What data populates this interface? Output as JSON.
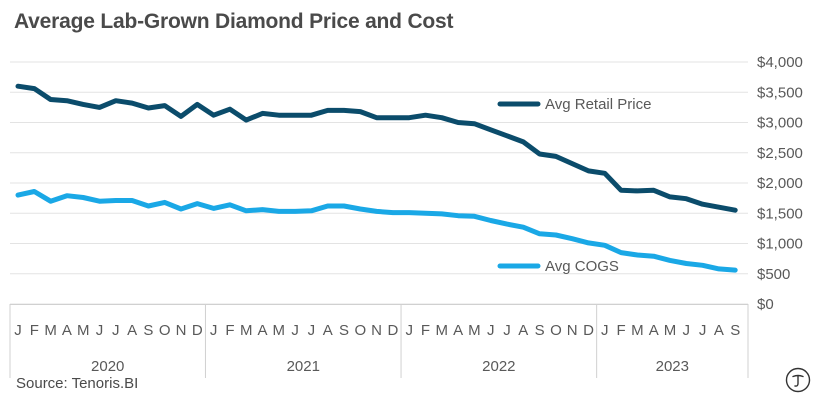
{
  "chart_data": {
    "type": "line",
    "title": "Average Lab-Grown Diamond Price and Cost",
    "source": "Source: Tenoris.BI",
    "ylim": [
      0,
      4000
    ],
    "yticks": [
      "$0",
      "$500",
      "$1,000",
      "$1,500",
      "$2,000",
      "$2,500",
      "$3,000",
      "$3,500",
      "$4,000"
    ],
    "ytick_values": [
      0,
      500,
      1000,
      1500,
      2000,
      2500,
      3000,
      3500,
      4000
    ],
    "grid": true,
    "month_labels": [
      "J",
      "F",
      "M",
      "A",
      "M",
      "J",
      "J",
      "A",
      "S",
      "O",
      "N",
      "D",
      "J",
      "F",
      "M",
      "A",
      "M",
      "J",
      "J",
      "A",
      "S",
      "O",
      "N",
      "D",
      "J",
      "F",
      "M",
      "A",
      "M",
      "J",
      "J",
      "A",
      "S",
      "O",
      "N",
      "D",
      "J",
      "F",
      "M",
      "A",
      "M",
      "J",
      "J",
      "A",
      "S"
    ],
    "years": [
      {
        "label": "2020",
        "months": 12
      },
      {
        "label": "2021",
        "months": 12
      },
      {
        "label": "2022",
        "months": 12
      },
      {
        "label": "2023",
        "months": 9
      }
    ],
    "series": [
      {
        "name": "Avg Retail Price",
        "color": "#0b4c6b",
        "values": [
          3600,
          3560,
          3380,
          3360,
          3300,
          3250,
          3360,
          3320,
          3240,
          3280,
          3100,
          3300,
          3120,
          3220,
          3040,
          3150,
          3120,
          3120,
          3120,
          3200,
          3200,
          3180,
          3080,
          3080,
          3080,
          3120,
          3080,
          3000,
          2980,
          2880,
          2780,
          2680,
          2480,
          2440,
          2320,
          2200,
          2160,
          1880,
          1870,
          1880,
          1770,
          1740,
          1650,
          1600,
          1550
        ]
      },
      {
        "name": "Avg COGS",
        "color": "#1aa8e6",
        "values": [
          1800,
          1860,
          1700,
          1790,
          1760,
          1700,
          1710,
          1710,
          1620,
          1680,
          1570,
          1660,
          1580,
          1640,
          1540,
          1560,
          1530,
          1530,
          1540,
          1620,
          1620,
          1570,
          1530,
          1510,
          1510,
          1500,
          1490,
          1460,
          1450,
          1380,
          1320,
          1270,
          1160,
          1140,
          1080,
          1010,
          970,
          850,
          810,
          790,
          720,
          670,
          640,
          580,
          560
        ]
      }
    ]
  },
  "logo": {
    "icon": "tenoris-logo-icon"
  }
}
